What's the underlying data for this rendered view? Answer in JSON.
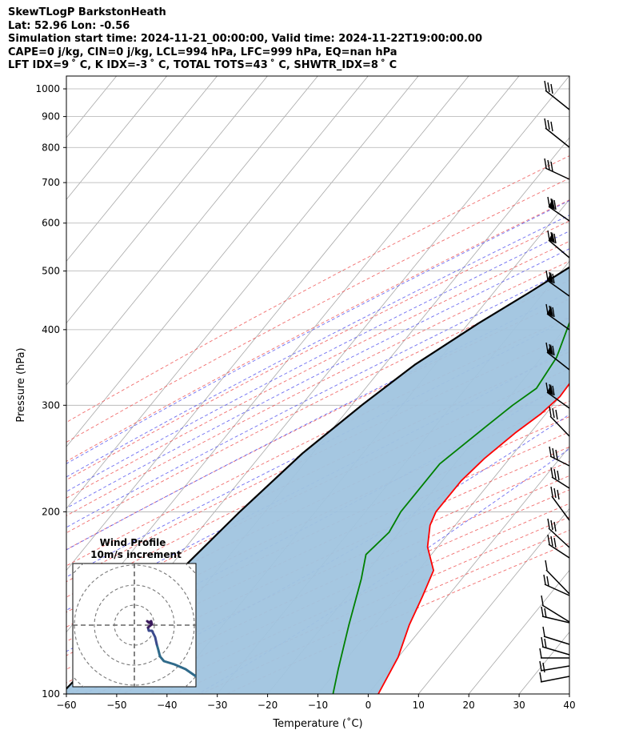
{
  "header": {
    "line1": "SkewTLogP BarkstonHeath",
    "line2": "Lat: 52.96   Lon: -0.56",
    "line3": "Simulation start time: 2024-11-21_00:00:00, Valid time: 2024-11-22T19:00:00.00",
    "line4": "CAPE=0 j/kg, CIN=0 j/kg, LCL=994 hPa, LFC=999 hPa, EQ=nan hPa",
    "line5": "LFT IDX=9 ˚ C, K IDX=-3 ˚ C, TOTAL TOTS=43 ˚ C, SHWTR_IDX=8 ˚ C"
  },
  "chart_data": {
    "type": "line",
    "xlabel": "Temperature (˚C)",
    "ylabel": "Pressure (hPa)",
    "xlim": [
      -60,
      40
    ],
    "ylim": [
      1050,
      100
    ],
    "yscale": "log",
    "x_ticks": [
      "−60",
      "−50",
      "−40",
      "−30",
      "−20",
      "−10",
      "0",
      "10",
      "20",
      "30",
      "40"
    ],
    "y_ticks": [
      "100",
      "200",
      "300",
      "400",
      "500",
      "600",
      "700",
      "800",
      "900",
      "1000"
    ],
    "grid": true,
    "series": [
      {
        "role": "temperature",
        "color": "#ff0000",
        "points": [
          [
            4.6,
            985
          ],
          [
            5,
            965
          ],
          [
            2,
            900
          ],
          [
            -1,
            840
          ],
          [
            -3,
            800
          ],
          [
            -6,
            730
          ],
          [
            -9,
            670
          ],
          [
            -10,
            600
          ],
          [
            -11,
            500
          ],
          [
            -11,
            420
          ],
          [
            -10.5,
            350
          ],
          [
            -10,
            310
          ],
          [
            -11,
            290
          ],
          [
            -13,
            270
          ],
          [
            -15,
            245
          ],
          [
            -16,
            225
          ],
          [
            -16,
            200
          ],
          [
            -15,
            190
          ],
          [
            -12,
            175
          ],
          [
            -7,
            160
          ],
          [
            -5,
            145
          ],
          [
            -3,
            130
          ],
          [
            0,
            115
          ],
          [
            2,
            100
          ]
        ]
      },
      {
        "role": "dewpoint",
        "color": "#008000",
        "points": [
          [
            1,
            990
          ],
          [
            -4,
            950
          ],
          [
            -11,
            880
          ],
          [
            -11,
            800
          ],
          [
            -13,
            760
          ],
          [
            -20,
            700
          ],
          [
            -24,
            650
          ],
          [
            -23,
            600
          ],
          [
            -23,
            500
          ],
          [
            -20,
            450
          ],
          [
            -20,
            410
          ],
          [
            -17,
            360
          ],
          [
            -16,
            320
          ],
          [
            -18,
            300
          ],
          [
            -20,
            275
          ],
          [
            -23,
            240
          ],
          [
            -23,
            200
          ],
          [
            -22,
            185
          ],
          [
            -23,
            170
          ],
          [
            -20,
            155
          ],
          [
            -15,
            130
          ],
          [
            -10,
            110
          ],
          [
            -7,
            100
          ]
        ]
      },
      {
        "role": "parcel",
        "color": "#000000",
        "points": [
          [
            1.5,
            1000
          ],
          [
            0,
            960
          ],
          [
            -5,
            870
          ],
          [
            -10,
            780
          ],
          [
            -15,
            700
          ],
          [
            -20,
            630
          ],
          [
            -24,
            580
          ],
          [
            -28,
            520
          ],
          [
            -33,
            460
          ],
          [
            -38,
            410
          ],
          [
            -44,
            350
          ],
          [
            -48,
            300
          ],
          [
            -52,
            250
          ],
          [
            -55,
            200
          ],
          [
            -58,
            150
          ],
          [
            -61,
            100
          ]
        ]
      }
    ],
    "shaded_area": {
      "between": [
        "parcel",
        "temperature"
      ],
      "color": "#a0c4df"
    },
    "wind_barbs": {
      "color": "#000000",
      "levels_hpa": [
        1000,
        975,
        950,
        925,
        900,
        850,
        800,
        750,
        700,
        650,
        600,
        550,
        500,
        450,
        400,
        350,
        300,
        250,
        225,
        200,
        175,
        150,
        125,
        100
      ]
    },
    "hodograph": {
      "title": "Wind Profile",
      "subtitle": "10m/s increment",
      "line_colors": [
        "#2f6a8a",
        "#3b4a8c",
        "#3a1a5c"
      ]
    }
  }
}
